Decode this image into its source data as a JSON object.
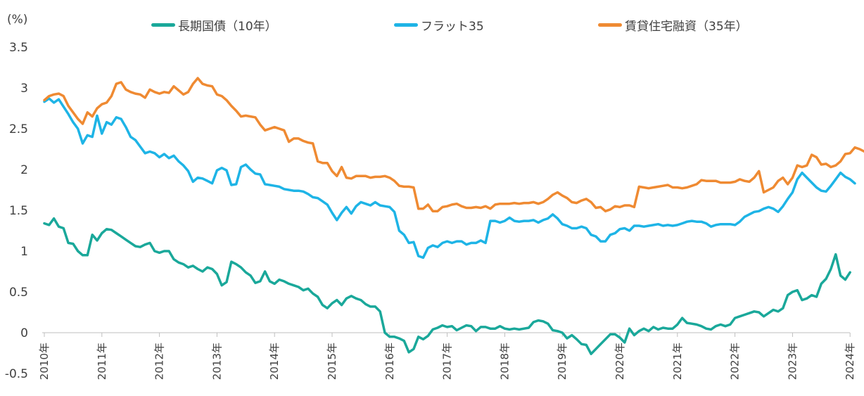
{
  "chart_data": {
    "type": "line",
    "title": "",
    "ylabel": "(%)",
    "xlabel": "",
    "ylim": [
      -0.5,
      3.5
    ],
    "yticks": [
      "3.5",
      "3",
      "2.5",
      "2",
      "1.5",
      "1",
      "0.5",
      "0",
      "-0.5"
    ],
    "xticks": [
      "2010年",
      "2011年",
      "2012年",
      "2013年",
      "2014年",
      "2015年",
      "2016年",
      "2017年",
      "2018年",
      "2019年",
      "2020年",
      "2021年",
      "2022年",
      "2023年",
      "2024年"
    ],
    "x_start_year": 2010,
    "legend_position": "top",
    "grid": false,
    "series": [
      {
        "name": "長期国債（10年）",
        "color": "#1aa89a",
        "values": [
          1.34,
          1.32,
          1.4,
          1.3,
          1.28,
          1.1,
          1.09,
          1.0,
          0.95,
          0.95,
          1.2,
          1.13,
          1.22,
          1.27,
          1.26,
          1.22,
          1.18,
          1.14,
          1.1,
          1.06,
          1.05,
          1.08,
          1.1,
          1.0,
          0.98,
          1.0,
          1.0,
          0.9,
          0.86,
          0.84,
          0.8,
          0.82,
          0.78,
          0.75,
          0.8,
          0.78,
          0.72,
          0.58,
          0.62,
          0.87,
          0.84,
          0.8,
          0.74,
          0.7,
          0.61,
          0.63,
          0.75,
          0.63,
          0.6,
          0.65,
          0.63,
          0.6,
          0.58,
          0.56,
          0.52,
          0.54,
          0.48,
          0.44,
          0.34,
          0.3,
          0.36,
          0.4,
          0.34,
          0.42,
          0.45,
          0.42,
          0.4,
          0.35,
          0.32,
          0.32,
          0.26,
          0.0,
          -0.05,
          -0.05,
          -0.07,
          -0.1,
          -0.24,
          -0.2,
          -0.05,
          -0.08,
          -0.04,
          0.04,
          0.06,
          0.09,
          0.07,
          0.08,
          0.03,
          0.06,
          0.09,
          0.08,
          0.02,
          0.07,
          0.07,
          0.05,
          0.05,
          0.08,
          0.05,
          0.04,
          0.05,
          0.04,
          0.05,
          0.06,
          0.13,
          0.15,
          0.14,
          0.11,
          0.03,
          0.02,
          0.0,
          -0.07,
          -0.03,
          -0.08,
          -0.14,
          -0.15,
          -0.26,
          -0.2,
          -0.14,
          -0.08,
          -0.02,
          -0.02,
          -0.06,
          -0.12,
          0.05,
          -0.03,
          0.02,
          0.05,
          0.02,
          0.07,
          0.04,
          0.06,
          0.05,
          0.05,
          0.1,
          0.18,
          0.12,
          0.11,
          0.1,
          0.08,
          0.05,
          0.04,
          0.08,
          0.1,
          0.08,
          0.1,
          0.18,
          0.2,
          0.22,
          0.24,
          0.26,
          0.25,
          0.2,
          0.24,
          0.28,
          0.26,
          0.3,
          0.46,
          0.5,
          0.52,
          0.4,
          0.42,
          0.46,
          0.44,
          0.6,
          0.66,
          0.78,
          0.96,
          0.7,
          0.65,
          0.74
        ]
      },
      {
        "name": "フラット35",
        "color": "#1eb4e6",
        "values": [
          2.83,
          2.87,
          2.82,
          2.86,
          2.77,
          2.68,
          2.58,
          2.5,
          2.32,
          2.42,
          2.4,
          2.66,
          2.44,
          2.58,
          2.55,
          2.64,
          2.62,
          2.52,
          2.4,
          2.36,
          2.28,
          2.2,
          2.22,
          2.2,
          2.15,
          2.19,
          2.14,
          2.17,
          2.1,
          2.05,
          1.98,
          1.85,
          1.9,
          1.89,
          1.86,
          1.83,
          1.99,
          2.02,
          1.99,
          1.81,
          1.82,
          2.03,
          2.06,
          2.0,
          1.95,
          1.94,
          1.82,
          1.81,
          1.8,
          1.79,
          1.76,
          1.75,
          1.74,
          1.74,
          1.73,
          1.7,
          1.66,
          1.65,
          1.61,
          1.57,
          1.47,
          1.38,
          1.47,
          1.54,
          1.46,
          1.55,
          1.6,
          1.58,
          1.56,
          1.6,
          1.56,
          1.55,
          1.54,
          1.48,
          1.25,
          1.2,
          1.1,
          1.11,
          0.94,
          0.92,
          1.04,
          1.07,
          1.05,
          1.1,
          1.12,
          1.1,
          1.12,
          1.12,
          1.08,
          1.1,
          1.1,
          1.13,
          1.1,
          1.37,
          1.37,
          1.35,
          1.37,
          1.41,
          1.37,
          1.36,
          1.37,
          1.37,
          1.38,
          1.35,
          1.38,
          1.4,
          1.45,
          1.4,
          1.33,
          1.31,
          1.28,
          1.28,
          1.3,
          1.28,
          1.2,
          1.18,
          1.12,
          1.12,
          1.2,
          1.22,
          1.27,
          1.28,
          1.25,
          1.31,
          1.31,
          1.3,
          1.31,
          1.32,
          1.33,
          1.31,
          1.32,
          1.31,
          1.32,
          1.34,
          1.36,
          1.37,
          1.36,
          1.36,
          1.34,
          1.3,
          1.32,
          1.33,
          1.33,
          1.33,
          1.32,
          1.36,
          1.42,
          1.45,
          1.48,
          1.49,
          1.52,
          1.54,
          1.52,
          1.48,
          1.55,
          1.64,
          1.72,
          1.88,
          1.96,
          1.9,
          1.84,
          1.78,
          1.74,
          1.73,
          1.8,
          1.88,
          1.96,
          1.91,
          1.88,
          1.83
        ]
      },
      {
        "name": "賃貸住宅融資（35年）",
        "color": "#ef8a32",
        "values": [
          2.85,
          2.9,
          2.92,
          2.93,
          2.9,
          2.78,
          2.7,
          2.62,
          2.56,
          2.7,
          2.65,
          2.75,
          2.8,
          2.82,
          2.9,
          3.05,
          3.07,
          2.98,
          2.95,
          2.93,
          2.92,
          2.88,
          2.98,
          2.95,
          2.93,
          2.95,
          2.94,
          3.02,
          2.97,
          2.92,
          2.95,
          3.05,
          3.12,
          3.05,
          3.03,
          3.02,
          2.92,
          2.9,
          2.85,
          2.78,
          2.72,
          2.65,
          2.66,
          2.65,
          2.64,
          2.55,
          2.48,
          2.5,
          2.52,
          2.5,
          2.48,
          2.34,
          2.38,
          2.38,
          2.35,
          2.33,
          2.32,
          2.1,
          2.08,
          2.08,
          1.98,
          1.92,
          2.03,
          1.9,
          1.89,
          1.92,
          1.92,
          1.92,
          1.9,
          1.91,
          1.91,
          1.92,
          1.9,
          1.86,
          1.8,
          1.79,
          1.79,
          1.78,
          1.52,
          1.52,
          1.57,
          1.49,
          1.49,
          1.54,
          1.55,
          1.57,
          1.58,
          1.55,
          1.53,
          1.53,
          1.54,
          1.53,
          1.55,
          1.52,
          1.57,
          1.58,
          1.58,
          1.58,
          1.59,
          1.58,
          1.59,
          1.59,
          1.6,
          1.58,
          1.6,
          1.64,
          1.69,
          1.72,
          1.68,
          1.65,
          1.6,
          1.59,
          1.62,
          1.64,
          1.6,
          1.53,
          1.54,
          1.49,
          1.51,
          1.55,
          1.54,
          1.56,
          1.56,
          1.54,
          1.79,
          1.78,
          1.77,
          1.78,
          1.79,
          1.8,
          1.81,
          1.78,
          1.78,
          1.77,
          1.78,
          1.8,
          1.82,
          1.87,
          1.86,
          1.86,
          1.86,
          1.84,
          1.84,
          1.84,
          1.85,
          1.88,
          1.86,
          1.85,
          1.9,
          1.98,
          1.72,
          1.75,
          1.78,
          1.86,
          1.9,
          1.82,
          1.9,
          2.05,
          2.03,
          2.05,
          2.18,
          2.15,
          2.06,
          2.07,
          2.03,
          2.05,
          2.1,
          2.19,
          2.2,
          2.27,
          2.25,
          2.22,
          2.21
        ]
      }
    ]
  }
}
